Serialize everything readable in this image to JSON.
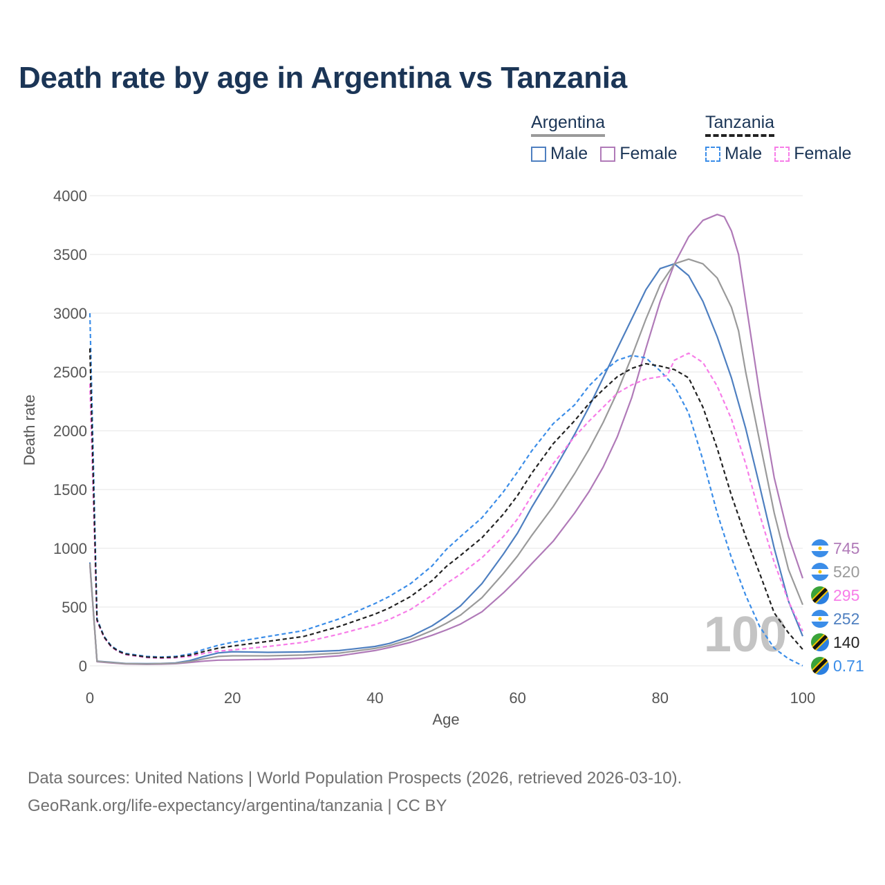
{
  "title": "Death rate by age in Argentina vs Tanzania",
  "legend": {
    "groups": [
      {
        "name": "Argentina",
        "style": "solid",
        "color": "#9a9a9a",
        "items": [
          {
            "label": "Male",
            "color": "#4e7fc0"
          },
          {
            "label": "Female",
            "color": "#b07ab8"
          }
        ]
      },
      {
        "name": "Tanzania",
        "style": "dashed",
        "color": "#222222",
        "items": [
          {
            "label": "Male",
            "color": "#3b8de8"
          },
          {
            "label": "Female",
            "color": "#f77de8"
          }
        ]
      }
    ]
  },
  "year_watermark": "100",
  "footer": {
    "line1": "Data sources: United Nations | World Population Prospects (2026, retrieved 2026-03-10).",
    "line2": "GeoRank.org/life-expectancy/argentina/tanzania | CC BY"
  },
  "chart_data": {
    "type": "line",
    "xlabel": "Age",
    "ylabel": "Death rate",
    "xlim": [
      0,
      100
    ],
    "ylim": [
      0,
      4000
    ],
    "xticks": [
      0,
      20,
      40,
      60,
      80,
      100
    ],
    "yticks": [
      0,
      500,
      1000,
      1500,
      2000,
      2500,
      3000,
      3500,
      4000
    ],
    "grid": true,
    "series": [
      {
        "name": "Argentina Male",
        "dash": false,
        "color": "#4e7fc0",
        "end_label": "252",
        "points": [
          [
            0,
            880
          ],
          [
            1,
            40
          ],
          [
            3,
            30
          ],
          [
            5,
            20
          ],
          [
            8,
            18
          ],
          [
            10,
            20
          ],
          [
            12,
            25
          ],
          [
            14,
            45
          ],
          [
            16,
            80
          ],
          [
            18,
            110
          ],
          [
            20,
            120
          ],
          [
            25,
            115
          ],
          [
            30,
            118
          ],
          [
            35,
            130
          ],
          [
            40,
            165
          ],
          [
            42,
            190
          ],
          [
            45,
            250
          ],
          [
            48,
            340
          ],
          [
            50,
            420
          ],
          [
            52,
            510
          ],
          [
            55,
            700
          ],
          [
            58,
            950
          ],
          [
            60,
            1130
          ],
          [
            62,
            1350
          ],
          [
            65,
            1650
          ],
          [
            68,
            1970
          ],
          [
            70,
            2200
          ],
          [
            72,
            2450
          ],
          [
            74,
            2700
          ],
          [
            76,
            2950
          ],
          [
            78,
            3200
          ],
          [
            80,
            3380
          ],
          [
            82,
            3420
          ],
          [
            84,
            3320
          ],
          [
            86,
            3100
          ],
          [
            88,
            2800
          ],
          [
            90,
            2450
          ],
          [
            92,
            2020
          ],
          [
            94,
            1520
          ],
          [
            96,
            1000
          ],
          [
            98,
            550
          ],
          [
            100,
            252
          ]
        ]
      },
      {
        "name": "Argentina Female",
        "dash": false,
        "color": "#b07ab8",
        "end_label": "745",
        "points": [
          [
            0,
            860
          ],
          [
            1,
            35
          ],
          [
            3,
            25
          ],
          [
            5,
            16
          ],
          [
            8,
            13
          ],
          [
            10,
            15
          ],
          [
            12,
            18
          ],
          [
            14,
            28
          ],
          [
            16,
            40
          ],
          [
            18,
            48
          ],
          [
            20,
            50
          ],
          [
            25,
            55
          ],
          [
            30,
            65
          ],
          [
            35,
            85
          ],
          [
            40,
            130
          ],
          [
            42,
            155
          ],
          [
            45,
            200
          ],
          [
            48,
            260
          ],
          [
            50,
            305
          ],
          [
            52,
            355
          ],
          [
            55,
            460
          ],
          [
            58,
            620
          ],
          [
            60,
            740
          ],
          [
            62,
            870
          ],
          [
            65,
            1060
          ],
          [
            68,
            1300
          ],
          [
            70,
            1480
          ],
          [
            72,
            1690
          ],
          [
            74,
            1950
          ],
          [
            76,
            2280
          ],
          [
            78,
            2700
          ],
          [
            80,
            3100
          ],
          [
            82,
            3420
          ],
          [
            84,
            3650
          ],
          [
            86,
            3790
          ],
          [
            88,
            3840
          ],
          [
            89,
            3820
          ],
          [
            90,
            3700
          ],
          [
            91,
            3500
          ],
          [
            92,
            3100
          ],
          [
            94,
            2300
          ],
          [
            96,
            1600
          ],
          [
            98,
            1100
          ],
          [
            100,
            745
          ]
        ]
      },
      {
        "name": "Argentina Total",
        "dash": false,
        "color": "#9a9a9a",
        "end_label": "520",
        "points": [
          [
            0,
            870
          ],
          [
            1,
            38
          ],
          [
            3,
            28
          ],
          [
            5,
            18
          ],
          [
            8,
            16
          ],
          [
            10,
            18
          ],
          [
            12,
            22
          ],
          [
            14,
            36
          ],
          [
            16,
            60
          ],
          [
            18,
            80
          ],
          [
            20,
            85
          ],
          [
            25,
            85
          ],
          [
            30,
            92
          ],
          [
            35,
            108
          ],
          [
            40,
            148
          ],
          [
            42,
            172
          ],
          [
            45,
            225
          ],
          [
            48,
            300
          ],
          [
            50,
            362
          ],
          [
            52,
            432
          ],
          [
            55,
            580
          ],
          [
            58,
            785
          ],
          [
            60,
            935
          ],
          [
            62,
            1110
          ],
          [
            65,
            1355
          ],
          [
            68,
            1635
          ],
          [
            70,
            1840
          ],
          [
            72,
            2070
          ],
          [
            74,
            2330
          ],
          [
            76,
            2630
          ],
          [
            78,
            2950
          ],
          [
            80,
            3240
          ],
          [
            82,
            3420
          ],
          [
            84,
            3460
          ],
          [
            86,
            3420
          ],
          [
            88,
            3300
          ],
          [
            90,
            3050
          ],
          [
            91,
            2850
          ],
          [
            92,
            2500
          ],
          [
            94,
            1900
          ],
          [
            96,
            1300
          ],
          [
            98,
            820
          ],
          [
            100,
            520
          ]
        ]
      },
      {
        "name": "Tanzania Male",
        "dash": true,
        "color": "#3b8de8",
        "end_label": "0.71",
        "points": [
          [
            0,
            3000
          ],
          [
            1,
            400
          ],
          [
            2,
            250
          ],
          [
            3,
            170
          ],
          [
            4,
            130
          ],
          [
            5,
            105
          ],
          [
            8,
            80
          ],
          [
            10,
            75
          ],
          [
            12,
            80
          ],
          [
            14,
            100
          ],
          [
            16,
            140
          ],
          [
            18,
            175
          ],
          [
            20,
            200
          ],
          [
            25,
            250
          ],
          [
            30,
            300
          ],
          [
            35,
            400
          ],
          [
            40,
            530
          ],
          [
            42,
            590
          ],
          [
            45,
            700
          ],
          [
            48,
            850
          ],
          [
            50,
            990
          ],
          [
            52,
            1100
          ],
          [
            55,
            1260
          ],
          [
            58,
            1480
          ],
          [
            60,
            1650
          ],
          [
            62,
            1830
          ],
          [
            65,
            2060
          ],
          [
            68,
            2220
          ],
          [
            70,
            2380
          ],
          [
            72,
            2500
          ],
          [
            74,
            2600
          ],
          [
            76,
            2640
          ],
          [
            78,
            2620
          ],
          [
            80,
            2510
          ],
          [
            82,
            2380
          ],
          [
            84,
            2150
          ],
          [
            86,
            1750
          ],
          [
            88,
            1300
          ],
          [
            90,
            920
          ],
          [
            92,
            600
          ],
          [
            94,
            330
          ],
          [
            96,
            150
          ],
          [
            98,
            60
          ],
          [
            100,
            0.71
          ]
        ]
      },
      {
        "name": "Tanzania Female",
        "dash": true,
        "color": "#f77de8",
        "end_label": "295",
        "points": [
          [
            0,
            2400
          ],
          [
            1,
            380
          ],
          [
            2,
            240
          ],
          [
            3,
            160
          ],
          [
            4,
            120
          ],
          [
            5,
            95
          ],
          [
            8,
            70
          ],
          [
            10,
            65
          ],
          [
            12,
            68
          ],
          [
            14,
            80
          ],
          [
            16,
            105
          ],
          [
            18,
            125
          ],
          [
            20,
            135
          ],
          [
            25,
            165
          ],
          [
            30,
            200
          ],
          [
            35,
            270
          ],
          [
            40,
            350
          ],
          [
            42,
            395
          ],
          [
            45,
            480
          ],
          [
            48,
            600
          ],
          [
            50,
            700
          ],
          [
            52,
            780
          ],
          [
            55,
            920
          ],
          [
            58,
            1100
          ],
          [
            60,
            1250
          ],
          [
            62,
            1450
          ],
          [
            65,
            1720
          ],
          [
            68,
            1950
          ],
          [
            70,
            2080
          ],
          [
            72,
            2200
          ],
          [
            74,
            2320
          ],
          [
            76,
            2390
          ],
          [
            78,
            2440
          ],
          [
            80,
            2460
          ],
          [
            81,
            2470
          ],
          [
            82,
            2600
          ],
          [
            84,
            2660
          ],
          [
            86,
            2580
          ],
          [
            88,
            2380
          ],
          [
            90,
            2100
          ],
          [
            92,
            1720
          ],
          [
            94,
            1280
          ],
          [
            96,
            880
          ],
          [
            98,
            550
          ],
          [
            100,
            295
          ]
        ]
      },
      {
        "name": "Tanzania Total",
        "dash": true,
        "color": "#222222",
        "end_label": "140",
        "points": [
          [
            0,
            2700
          ],
          [
            1,
            390
          ],
          [
            2,
            245
          ],
          [
            3,
            165
          ],
          [
            4,
            125
          ],
          [
            5,
            100
          ],
          [
            8,
            75
          ],
          [
            10,
            70
          ],
          [
            12,
            74
          ],
          [
            14,
            90
          ],
          [
            16,
            122
          ],
          [
            18,
            150
          ],
          [
            20,
            168
          ],
          [
            25,
            208
          ],
          [
            30,
            250
          ],
          [
            35,
            335
          ],
          [
            40,
            440
          ],
          [
            42,
            492
          ],
          [
            45,
            590
          ],
          [
            48,
            725
          ],
          [
            50,
            845
          ],
          [
            52,
            940
          ],
          [
            55,
            1090
          ],
          [
            58,
            1290
          ],
          [
            60,
            1450
          ],
          [
            62,
            1640
          ],
          [
            65,
            1890
          ],
          [
            68,
            2085
          ],
          [
            70,
            2230
          ],
          [
            72,
            2350
          ],
          [
            74,
            2460
          ],
          [
            76,
            2530
          ],
          [
            78,
            2570
          ],
          [
            80,
            2550
          ],
          [
            82,
            2520
          ],
          [
            84,
            2450
          ],
          [
            86,
            2200
          ],
          [
            88,
            1850
          ],
          [
            90,
            1450
          ],
          [
            92,
            1100
          ],
          [
            94,
            780
          ],
          [
            96,
            450
          ],
          [
            98,
            280
          ],
          [
            100,
            140
          ]
        ]
      }
    ],
    "end_markers": [
      {
        "label": "745",
        "country": "argentina",
        "color": "#b07ab8"
      },
      {
        "label": "520",
        "country": "argentina",
        "color": "#9a9a9a"
      },
      {
        "label": "295",
        "country": "tanzania",
        "color": "#f77de8"
      },
      {
        "label": "252",
        "country": "argentina",
        "color": "#4e7fc0"
      },
      {
        "label": "140",
        "country": "tanzania",
        "color": "#222222"
      },
      {
        "label": "0.71",
        "country": "tanzania",
        "color": "#3b8de8"
      }
    ]
  }
}
